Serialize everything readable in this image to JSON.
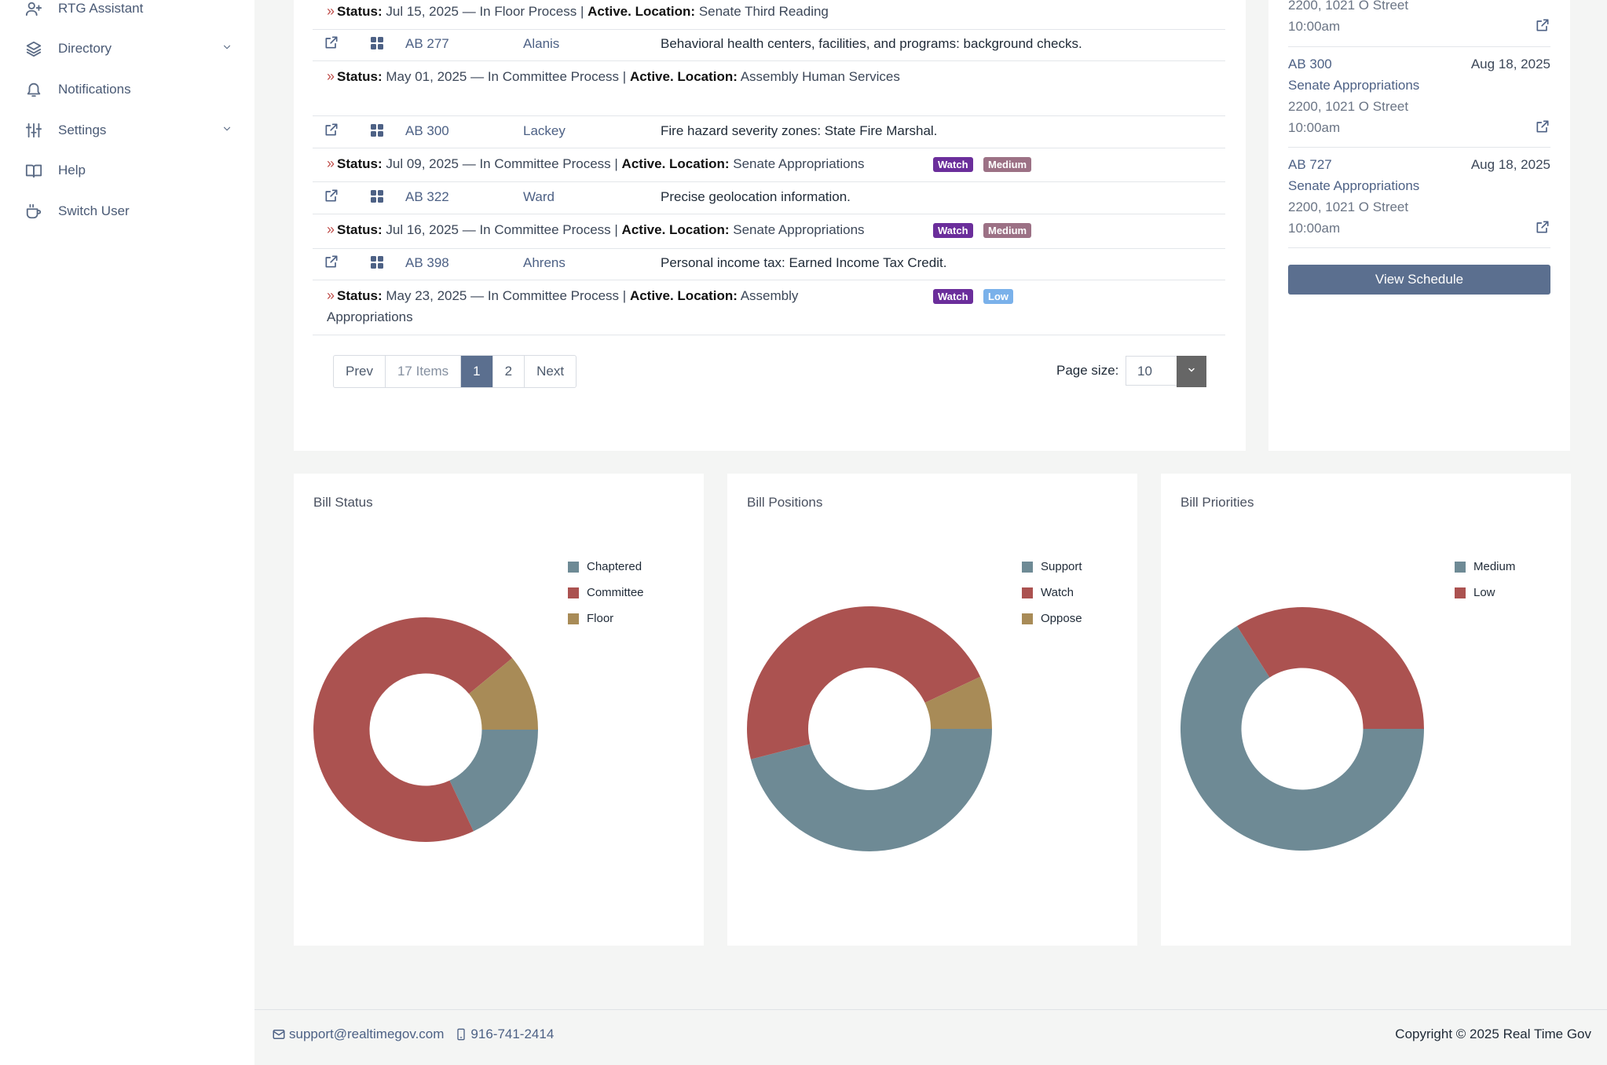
{
  "sidebar": {
    "items": [
      {
        "label": "RTG Assistant",
        "icon": "user-plus-icon"
      },
      {
        "label": "Directory",
        "icon": "layers-icon",
        "has_chevron": true
      },
      {
        "label": "Notifications",
        "icon": "bell-icon"
      },
      {
        "label": "Settings",
        "icon": "sliders-icon",
        "has_chevron": true
      },
      {
        "label": "Help",
        "icon": "book-icon"
      },
      {
        "label": "Switch User",
        "icon": "coffee-cup-icon"
      }
    ]
  },
  "bills": {
    "top_status": {
      "label": "Status:",
      "text": "Jul 15, 2025 — In Floor Process |",
      "active": "Active.",
      "location_label": "Location:",
      "location": "Senate Third Reading"
    },
    "rows": [
      {
        "id": "AB 277",
        "author": "Alanis",
        "title": "Behavioral health centers, facilities, and programs: background checks.",
        "status": {
          "label": "Status:",
          "text": "May 01, 2025 — In Committee Process |",
          "active": "Active.",
          "location_label": "Location:",
          "location": "Assembly Human Services"
        },
        "badges": []
      },
      {
        "id": "AB 300",
        "author": "Lackey",
        "title": "Fire hazard severity zones: State Fire Marshal.",
        "status": {
          "label": "Status:",
          "text": "Jul 09, 2025 — In Committee Process |",
          "active": "Active.",
          "location_label": "Location:",
          "location": "Senate Appropriations"
        },
        "badges": [
          "Watch",
          "Medium"
        ]
      },
      {
        "id": "AB 322",
        "author": "Ward",
        "title": "Precise geolocation information.",
        "status": {
          "label": "Status:",
          "text": "Jul 16, 2025 — In Committee Process |",
          "active": "Active.",
          "location_label": "Location:",
          "location": "Senate Appropriations"
        },
        "badges": [
          "Watch",
          "Medium"
        ]
      },
      {
        "id": "AB 398",
        "author": "Ahrens",
        "title": "Personal income tax: Earned Income Tax Credit.",
        "status": {
          "label": "Status:",
          "text": "May 23, 2025 — In Committee Process |",
          "active": "Active.",
          "location_label": "Location:",
          "location": "Assembly Appropriations"
        },
        "badges": [
          "Watch",
          "Low"
        ]
      }
    ]
  },
  "pager": {
    "prev": "Prev",
    "items": "17 Items",
    "page1": "1",
    "page2": "2",
    "next": "Next",
    "page_size_label": "Page size:",
    "page_size": "10"
  },
  "schedule": {
    "top": {
      "room": "2200, 1021 O Street",
      "time": "10:00am"
    },
    "items": [
      {
        "id": "AB 300",
        "date": "Aug 18, 2025",
        "committee": "Senate Appropriations",
        "room": "2200, 1021 O Street",
        "time": "10:00am"
      },
      {
        "id": "AB 727",
        "date": "Aug 18, 2025",
        "committee": "Senate Appropriations",
        "room": "2200, 1021 O Street",
        "time": "10:00am"
      }
    ],
    "view_button": "View Schedule"
  },
  "colors": {
    "slate": "#6e8a95",
    "red": "#ab5250",
    "tan": "#a88b57"
  },
  "chart_data": [
    {
      "type": "pie",
      "title": "Bill Status",
      "labels": [
        "Chaptered",
        "Committee",
        "Floor"
      ],
      "values": [
        18,
        71,
        11
      ]
    },
    {
      "type": "pie",
      "title": "Bill Positions",
      "labels": [
        "Support",
        "Watch",
        "Oppose"
      ],
      "values": [
        46,
        47,
        7
      ]
    },
    {
      "type": "pie",
      "title": "Bill Priorities",
      "labels": [
        "Medium",
        "Low"
      ],
      "values": [
        66,
        34
      ]
    }
  ],
  "footer": {
    "email": "support@realtimegov.com",
    "phone": "916-741-2414",
    "copyright": "Copyright © 2025  Real Time Gov"
  }
}
